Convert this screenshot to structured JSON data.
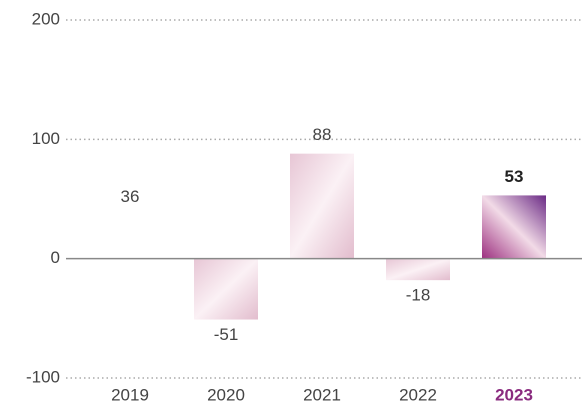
{
  "chart_data": {
    "type": "bar",
    "categories": [
      "2019",
      "2020",
      "2021",
      "2022",
      "2023"
    ],
    "values": [
      36,
      -51,
      88,
      -18,
      53
    ],
    "color": "#ecd3df",
    "highlight": 4,
    "highlight_color": "#8a2b7f",
    "ylim": [
      -100,
      200
    ],
    "yticks": [
      -100,
      0,
      100,
      200
    ],
    "grid": true
  }
}
